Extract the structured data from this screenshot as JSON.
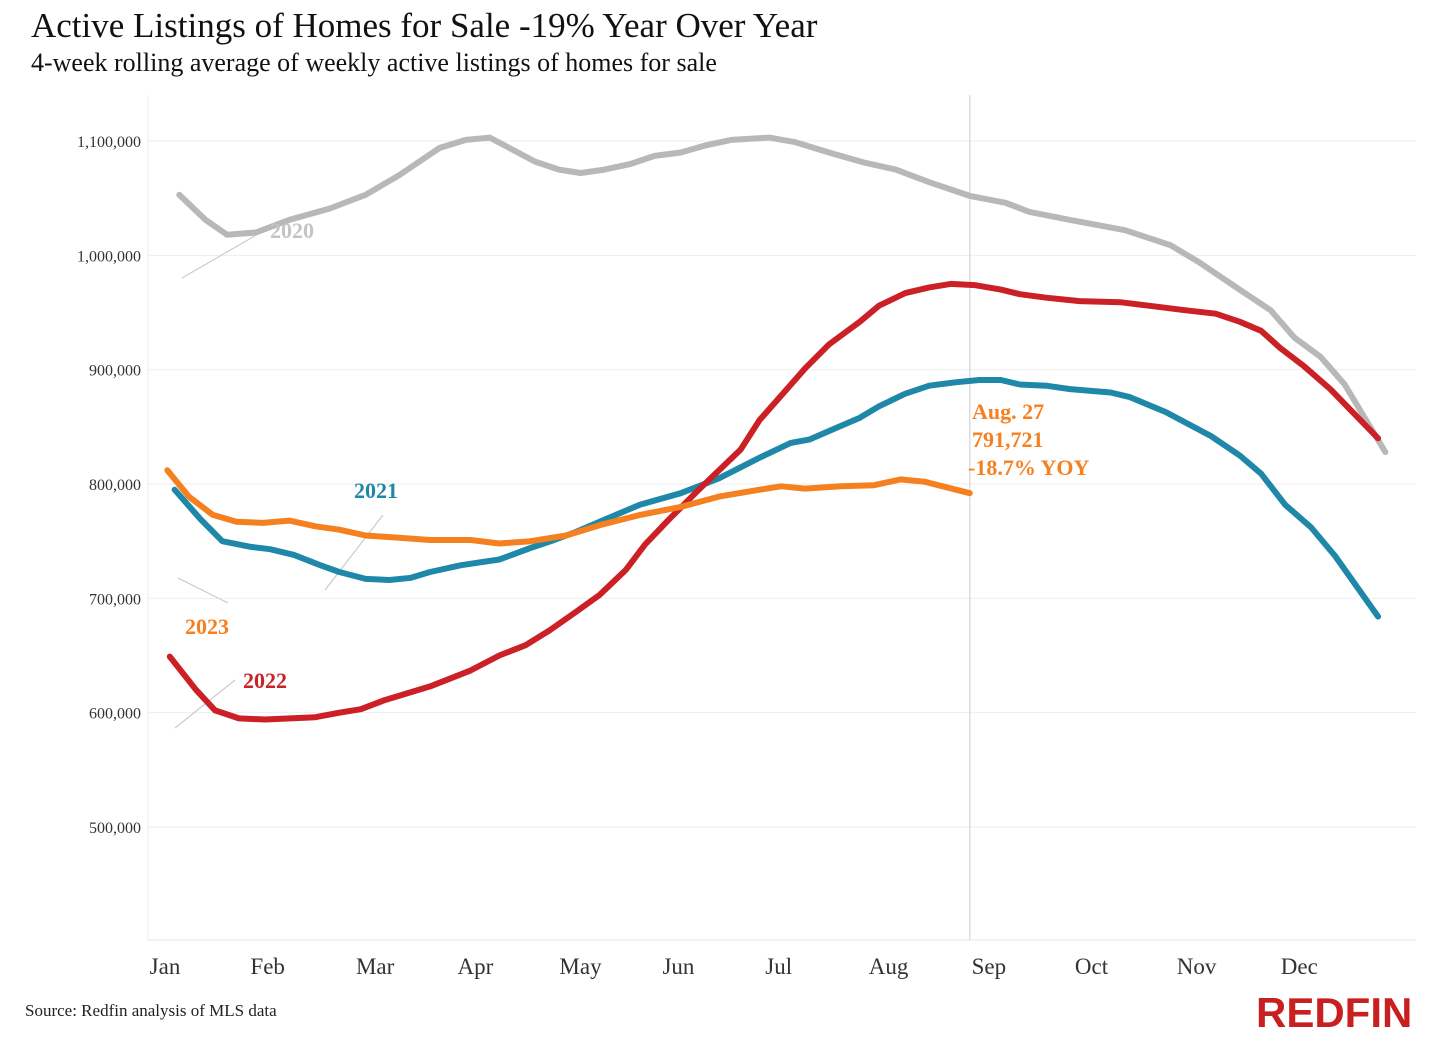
{
  "chart_data": {
    "type": "line",
    "title": "Active Listings of Homes for Sale -19% Year Over Year",
    "subtitle": "4-week rolling average of weekly active listings of homes for sale",
    "source": "Source: Redfin analysis of MLS data",
    "brand": "REDFIN",
    "xlabel": "",
    "ylabel": "",
    "x_unit": "week of year",
    "xlim": [
      1,
      52
    ],
    "ylim": [
      400000,
      1140000
    ],
    "yticks": [
      500000,
      600000,
      700000,
      800000,
      900000,
      1000000,
      1100000
    ],
    "ytick_labels": [
      "500,000",
      "600,000",
      "700,000",
      "800,000",
      "900,000",
      "1,000,000",
      "1,100,000"
    ],
    "xticks": [
      1.0,
      5.3,
      9.8,
      14.0,
      18.4,
      22.5,
      26.7,
      31.3,
      35.5,
      39.8,
      44.2,
      48.5
    ],
    "xtick_labels": [
      "Jan",
      "Feb",
      "Mar",
      "Apr",
      "May",
      "Jun",
      "Jul",
      "Aug",
      "Sep",
      "Oct",
      "Nov",
      "Dec"
    ],
    "grid": true,
    "reference_line_x": 34.7,
    "series": [
      {
        "name": "2020",
        "color": "#b8b8b8",
        "label_color": "#c4c4c4",
        "x": [
          1.6,
          2.7,
          3.6,
          4.8,
          6.2,
          7.9,
          9.4,
          10.8,
          12.5,
          13.6,
          14.6,
          16.5,
          17.5,
          18.4,
          19.4,
          20.5,
          21.5,
          22.6,
          23.6,
          24.7,
          26.3,
          27.4,
          28.8,
          30.3,
          31.6,
          33.0,
          34.7,
          36.2,
          37.2,
          38.9,
          41.2,
          43.1,
          44.3,
          46.0,
          47.3,
          48.3,
          49.4,
          50.4,
          52.1
        ],
        "y": [
          1053000,
          1031000,
          1018000,
          1020000,
          1031000,
          1041000,
          1053000,
          1070000,
          1094000,
          1101000,
          1103000,
          1082000,
          1075000,
          1072000,
          1075000,
          1080000,
          1087000,
          1090000,
          1096000,
          1101000,
          1103000,
          1099000,
          1090000,
          1081000,
          1075000,
          1064000,
          1052000,
          1046000,
          1038000,
          1031000,
          1022000,
          1009000,
          994000,
          970000,
          952000,
          928000,
          911000,
          887000,
          828000
        ]
      },
      {
        "name": "2021",
        "color": "#1f87a8",
        "label_color": "#1f87a8",
        "x": [
          1.4,
          2.5,
          3.4,
          4.6,
          5.4,
          6.4,
          7.5,
          8.3,
          9.4,
          10.4,
          11.3,
          12.1,
          13.4,
          15.0,
          16.3,
          17.3,
          18.2,
          19.2,
          20.9,
          22.6,
          24.2,
          25.9,
          27.2,
          28.0,
          29.1,
          30.1,
          30.9,
          32.0,
          33.0,
          34.1,
          35.1,
          36.0,
          36.8,
          37.9,
          38.9,
          40.6,
          41.4,
          42.9,
          44.8,
          46.0,
          46.9,
          47.9,
          49.0,
          50.0,
          51.8
        ],
        "y": [
          795000,
          769000,
          750000,
          745000,
          743000,
          738000,
          729000,
          723000,
          717000,
          716000,
          718000,
          723000,
          729000,
          734000,
          744000,
          751000,
          758000,
          767000,
          782000,
          792000,
          805000,
          823000,
          836000,
          839000,
          849000,
          858000,
          868000,
          879000,
          886000,
          889000,
          891000,
          891000,
          887000,
          886000,
          883000,
          880000,
          876000,
          863000,
          842000,
          825000,
          809000,
          782000,
          762000,
          737000,
          684000
        ]
      },
      {
        "name": "2022",
        "color": "#cc2027",
        "label_color": "#cc2027",
        "x": [
          1.2,
          2.3,
          3.1,
          4.1,
          5.2,
          7.3,
          8.3,
          9.2,
          10.2,
          12.1,
          13.8,
          15.0,
          16.1,
          17.1,
          18.2,
          19.2,
          20.3,
          21.1,
          22.1,
          23.4,
          25.1,
          25.9,
          27.0,
          27.8,
          28.8,
          30.1,
          30.9,
          32.0,
          33.0,
          33.9,
          34.9,
          36.0,
          36.8,
          37.9,
          39.3,
          41.0,
          42.2,
          43.7,
          45.0,
          46.0,
          46.9,
          47.7,
          48.7,
          49.8,
          51.8
        ],
        "y": [
          649000,
          620000,
          602000,
          595000,
          594000,
          596000,
          600000,
          603000,
          611000,
          623000,
          637000,
          650000,
          659000,
          672000,
          688000,
          703000,
          725000,
          747000,
          769000,
          796000,
          830000,
          856000,
          882000,
          901000,
          922000,
          942000,
          956000,
          967000,
          972000,
          975000,
          974000,
          970000,
          966000,
          963000,
          960000,
          959000,
          956000,
          952000,
          949000,
          942000,
          934000,
          919000,
          903000,
          883000,
          840000
        ]
      },
      {
        "name": "2023",
        "color": "#f5801f",
        "label_color": "#f5801f",
        "x": [
          1.1,
          2.0,
          3.0,
          4.0,
          5.1,
          6.2,
          7.3,
          8.3,
          9.4,
          10.8,
          12.1,
          13.8,
          15.0,
          16.3,
          17.8,
          19.2,
          20.9,
          22.6,
          24.2,
          25.9,
          26.8,
          27.8,
          29.3,
          30.7,
          31.8,
          32.8,
          34.7
        ],
        "y": [
          812000,
          789000,
          773000,
          767000,
          766000,
          768000,
          763000,
          760000,
          755000,
          753000,
          751000,
          751000,
          748000,
          750000,
          755000,
          764000,
          773000,
          780000,
          789000,
          795000,
          798000,
          796000,
          798000,
          799000,
          804000,
          802000,
          792000
        ]
      }
    ],
    "annotation": {
      "date": "Aug. 27",
      "value": "791,721",
      "change": "-18.7% YOY",
      "color": "#f5801f"
    }
  }
}
